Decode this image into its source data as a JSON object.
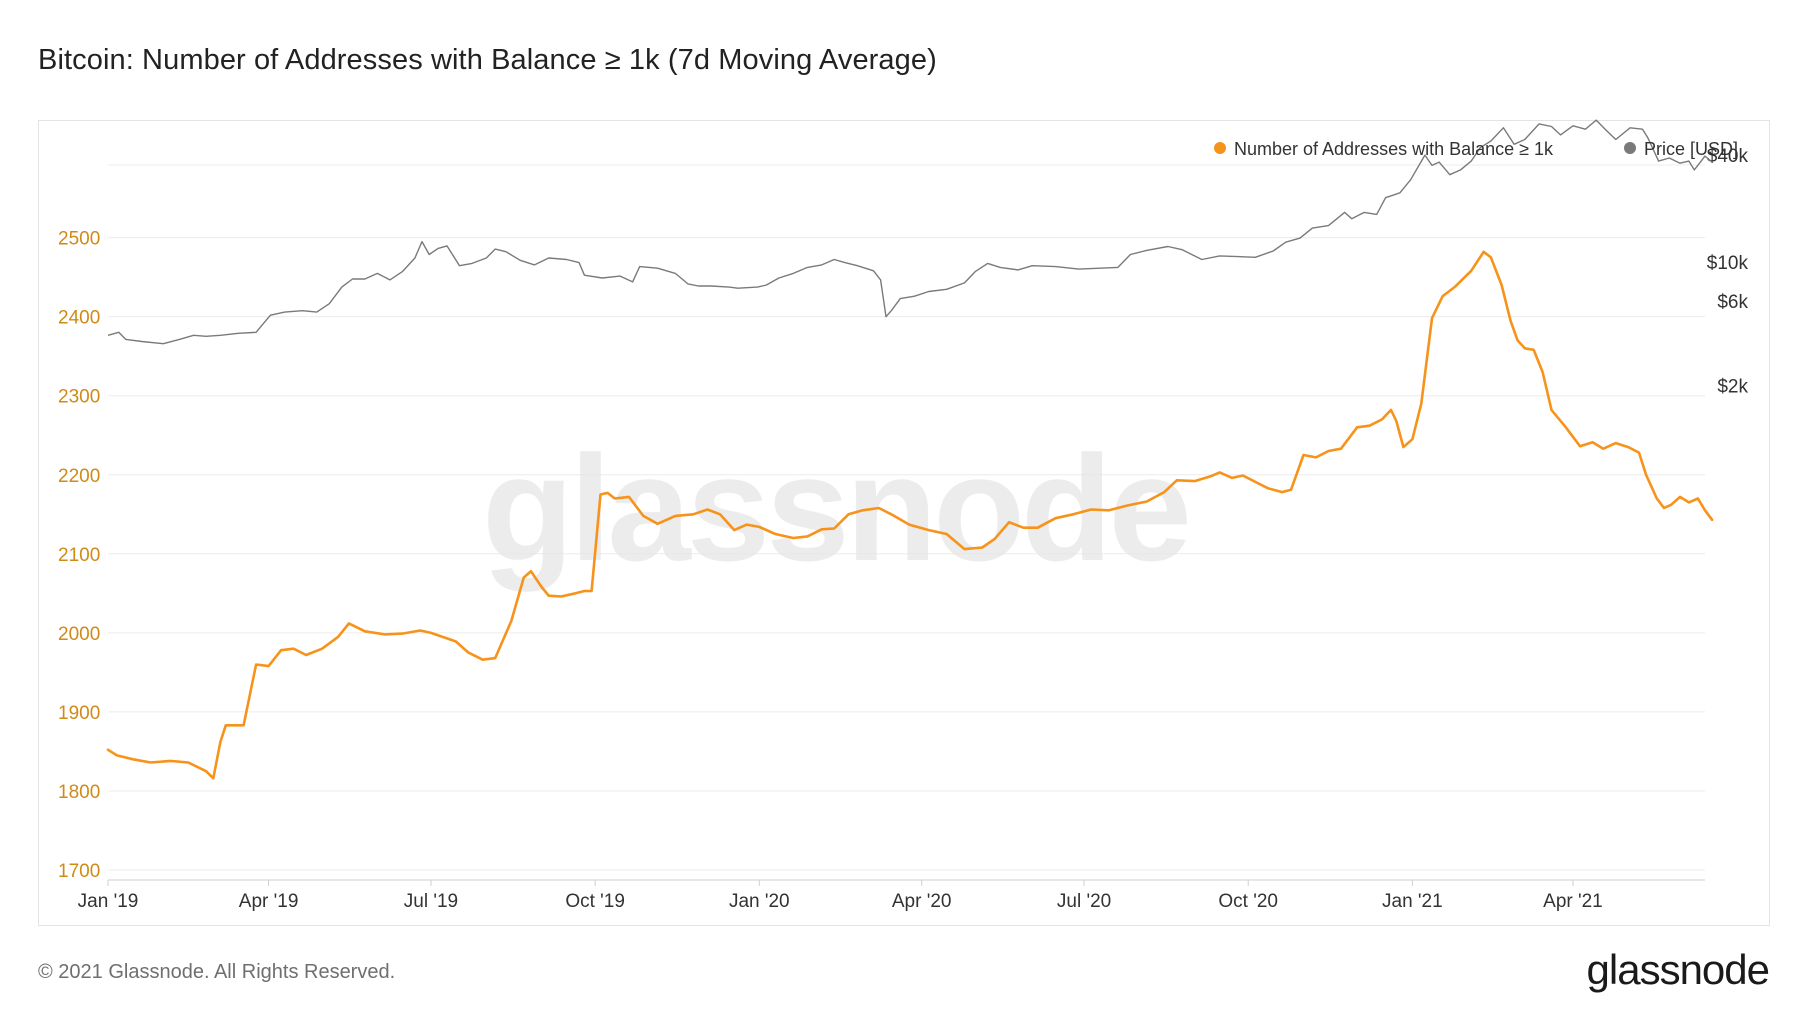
{
  "title": "Bitcoin: Number of Addresses with Balance ≥ 1k (7d Moving Average)",
  "footer": {
    "copyright": "© 2021 Glassnode. All Rights Reserved.",
    "logo": "glassnode"
  },
  "watermark": "glassnode",
  "colors": {
    "addresses": "#f7931a",
    "price": "#7a7a7a",
    "grid": "#ececec",
    "axis_left": "#d08a16",
    "axis_right": "#333333"
  },
  "chart_data": {
    "type": "line",
    "title": "Bitcoin: Number of Addresses with Balance ≥ 1k (7d Moving Average)",
    "legend_position": "top-right",
    "grid": true,
    "x_axis": {
      "ticks": [
        "Jan '19",
        "Apr '19",
        "Jul '19",
        "Oct '19",
        "Jan '20",
        "Apr '20",
        "Jul '20",
        "Oct '20",
        "Jan '21",
        "Apr '21"
      ],
      "range": [
        "2019-01-01",
        "2021-06-14"
      ]
    },
    "y_axis_left": {
      "ticks": [
        1700,
        1800,
        1900,
        2000,
        2100,
        2200,
        2300,
        2400,
        2500
      ],
      "range": [
        1700,
        2520
      ]
    },
    "y_axis_right": {
      "scale": "log",
      "tick_values": [
        2000,
        6000,
        10000,
        40000
      ],
      "tick_labels": [
        "$2k",
        "$6k",
        "$10k",
        "$40k"
      ]
    },
    "series": [
      {
        "name": "Number of Addresses with Balance ≥ 1k",
        "axis": "left",
        "points": [
          [
            "2019-01-01",
            1852
          ],
          [
            "2019-01-06",
            1845
          ],
          [
            "2019-01-15",
            1840
          ],
          [
            "2019-01-25",
            1836
          ],
          [
            "2019-02-05",
            1838
          ],
          [
            "2019-02-15",
            1836
          ],
          [
            "2019-02-25",
            1825
          ],
          [
            "2019-03-01",
            1816
          ],
          [
            "2019-03-05",
            1862
          ],
          [
            "2019-03-08",
            1883
          ],
          [
            "2019-03-18",
            1883
          ],
          [
            "2019-03-25",
            1960
          ],
          [
            "2019-04-01",
            1958
          ],
          [
            "2019-04-08",
            1978
          ],
          [
            "2019-04-15",
            1980
          ],
          [
            "2019-04-22",
            1972
          ],
          [
            "2019-05-01",
            1980
          ],
          [
            "2019-05-10",
            1995
          ],
          [
            "2019-05-16",
            2012
          ],
          [
            "2019-05-25",
            2002
          ],
          [
            "2019-06-05",
            1998
          ],
          [
            "2019-06-15",
            1999
          ],
          [
            "2019-06-25",
            2003
          ],
          [
            "2019-07-01",
            2000
          ],
          [
            "2019-07-10",
            1993
          ],
          [
            "2019-07-15",
            1989
          ],
          [
            "2019-07-22",
            1975
          ],
          [
            "2019-07-30",
            1966
          ],
          [
            "2019-08-06",
            1968
          ],
          [
            "2019-08-15",
            2015
          ],
          [
            "2019-08-22",
            2070
          ],
          [
            "2019-08-26",
            2078
          ],
          [
            "2019-09-01",
            2058
          ],
          [
            "2019-09-05",
            2047
          ],
          [
            "2019-09-12",
            2046
          ],
          [
            "2019-09-20",
            2050
          ],
          [
            "2019-09-25",
            2053
          ],
          [
            "2019-09-29",
            2053
          ],
          [
            "2019-10-04",
            2175
          ],
          [
            "2019-10-08",
            2177
          ],
          [
            "2019-10-12",
            2170
          ],
          [
            "2019-10-20",
            2172
          ],
          [
            "2019-10-28",
            2148
          ],
          [
            "2019-11-05",
            2138
          ],
          [
            "2019-11-15",
            2148
          ],
          [
            "2019-11-25",
            2150
          ],
          [
            "2019-12-03",
            2156
          ],
          [
            "2019-12-10",
            2150
          ],
          [
            "2019-12-18",
            2130
          ],
          [
            "2019-12-25",
            2137
          ],
          [
            "2020-01-01",
            2134
          ],
          [
            "2020-01-10",
            2125
          ],
          [
            "2020-01-20",
            2120
          ],
          [
            "2020-01-28",
            2122
          ],
          [
            "2020-02-05",
            2131
          ],
          [
            "2020-02-12",
            2132
          ],
          [
            "2020-02-20",
            2150
          ],
          [
            "2020-02-28",
            2155
          ],
          [
            "2020-03-08",
            2158
          ],
          [
            "2020-03-15",
            2150
          ],
          [
            "2020-03-25",
            2137
          ],
          [
            "2020-04-05",
            2130
          ],
          [
            "2020-04-15",
            2125
          ],
          [
            "2020-04-25",
            2106
          ],
          [
            "2020-05-05",
            2108
          ],
          [
            "2020-05-12",
            2119
          ],
          [
            "2020-05-20",
            2140
          ],
          [
            "2020-05-28",
            2133
          ],
          [
            "2020-06-05",
            2133
          ],
          [
            "2020-06-15",
            2145
          ],
          [
            "2020-06-25",
            2150
          ],
          [
            "2020-07-05",
            2156
          ],
          [
            "2020-07-15",
            2155
          ],
          [
            "2020-07-25",
            2161
          ],
          [
            "2020-08-05",
            2166
          ],
          [
            "2020-08-15",
            2178
          ],
          [
            "2020-08-22",
            2193
          ],
          [
            "2020-09-01",
            2192
          ],
          [
            "2020-09-10",
            2198
          ],
          [
            "2020-09-15",
            2203
          ],
          [
            "2020-09-22",
            2196
          ],
          [
            "2020-09-28",
            2199
          ],
          [
            "2020-10-05",
            2191
          ],
          [
            "2020-10-12",
            2183
          ],
          [
            "2020-10-20",
            2178
          ],
          [
            "2020-10-25",
            2181
          ],
          [
            "2020-11-01",
            2225
          ],
          [
            "2020-11-08",
            2222
          ],
          [
            "2020-11-15",
            2230
          ],
          [
            "2020-11-22",
            2233
          ],
          [
            "2020-12-01",
            2260
          ],
          [
            "2020-12-08",
            2262
          ],
          [
            "2020-12-15",
            2270
          ],
          [
            "2020-12-20",
            2282
          ],
          [
            "2020-12-23",
            2268
          ],
          [
            "2020-12-27",
            2235
          ],
          [
            "2021-01-01",
            2245
          ],
          [
            "2021-01-06",
            2290
          ],
          [
            "2021-01-12",
            2398
          ],
          [
            "2021-01-18",
            2426
          ],
          [
            "2021-01-25",
            2438
          ],
          [
            "2021-02-03",
            2458
          ],
          [
            "2021-02-10",
            2482
          ],
          [
            "2021-02-14",
            2475
          ],
          [
            "2021-02-20",
            2440
          ],
          [
            "2021-02-25",
            2395
          ],
          [
            "2021-03-01",
            2370
          ],
          [
            "2021-03-05",
            2360
          ],
          [
            "2021-03-10",
            2358
          ],
          [
            "2021-03-15",
            2330
          ],
          [
            "2021-03-20",
            2282
          ],
          [
            "2021-03-28",
            2260
          ],
          [
            "2021-04-05",
            2236
          ],
          [
            "2021-04-12",
            2241
          ],
          [
            "2021-04-18",
            2233
          ],
          [
            "2021-04-25",
            2240
          ],
          [
            "2021-05-02",
            2235
          ],
          [
            "2021-05-08",
            2228
          ],
          [
            "2021-05-12",
            2200
          ],
          [
            "2021-05-18",
            2170
          ],
          [
            "2021-05-22",
            2158
          ],
          [
            "2021-05-26",
            2162
          ],
          [
            "2021-05-31",
            2172
          ],
          [
            "2021-06-05",
            2165
          ],
          [
            "2021-06-10",
            2170
          ],
          [
            "2021-06-14",
            2155
          ],
          [
            "2021-06-18",
            2143
          ]
        ]
      },
      {
        "name": "Price [USD]",
        "axis": "right",
        "points": [
          [
            "2019-01-01",
            3850
          ],
          [
            "2019-01-07",
            4000
          ],
          [
            "2019-01-11",
            3650
          ],
          [
            "2019-01-20",
            3550
          ],
          [
            "2019-02-01",
            3450
          ],
          [
            "2019-02-10",
            3650
          ],
          [
            "2019-02-18",
            3850
          ],
          [
            "2019-02-25",
            3800
          ],
          [
            "2019-03-05",
            3850
          ],
          [
            "2019-03-15",
            3950
          ],
          [
            "2019-03-25",
            4000
          ],
          [
            "2019-04-02",
            5000
          ],
          [
            "2019-04-10",
            5200
          ],
          [
            "2019-04-20",
            5300
          ],
          [
            "2019-04-28",
            5200
          ],
          [
            "2019-05-05",
            5800
          ],
          [
            "2019-05-12",
            7200
          ],
          [
            "2019-05-18",
            8000
          ],
          [
            "2019-05-25",
            8000
          ],
          [
            "2019-06-01",
            8600
          ],
          [
            "2019-06-08",
            7900
          ],
          [
            "2019-06-15",
            8800
          ],
          [
            "2019-06-22",
            10500
          ],
          [
            "2019-06-26",
            13000
          ],
          [
            "2019-06-30",
            11000
          ],
          [
            "2019-07-05",
            11900
          ],
          [
            "2019-07-10",
            12300
          ],
          [
            "2019-07-17",
            9500
          ],
          [
            "2019-07-24",
            9800
          ],
          [
            "2019-08-01",
            10500
          ],
          [
            "2019-08-06",
            11800
          ],
          [
            "2019-08-12",
            11400
          ],
          [
            "2019-08-20",
            10200
          ],
          [
            "2019-08-28",
            9600
          ],
          [
            "2019-09-05",
            10500
          ],
          [
            "2019-09-15",
            10300
          ],
          [
            "2019-09-22",
            9900
          ],
          [
            "2019-09-25",
            8400
          ],
          [
            "2019-10-05",
            8100
          ],
          [
            "2019-10-15",
            8300
          ],
          [
            "2019-10-22",
            7700
          ],
          [
            "2019-10-26",
            9400
          ],
          [
            "2019-11-05",
            9200
          ],
          [
            "2019-11-15",
            8600
          ],
          [
            "2019-11-22",
            7500
          ],
          [
            "2019-11-28",
            7300
          ],
          [
            "2019-12-05",
            7300
          ],
          [
            "2019-12-15",
            7200
          ],
          [
            "2019-12-20",
            7100
          ],
          [
            "2019-12-31",
            7200
          ],
          [
            "2020-01-05",
            7400
          ],
          [
            "2020-01-12",
            8100
          ],
          [
            "2020-01-20",
            8600
          ],
          [
            "2020-01-28",
            9300
          ],
          [
            "2020-02-05",
            9600
          ],
          [
            "2020-02-12",
            10300
          ],
          [
            "2020-02-18",
            9900
          ],
          [
            "2020-02-25",
            9500
          ],
          [
            "2020-03-05",
            8900
          ],
          [
            "2020-03-09",
            7900
          ],
          [
            "2020-03-12",
            4900
          ],
          [
            "2020-03-15",
            5300
          ],
          [
            "2020-03-20",
            6200
          ],
          [
            "2020-03-28",
            6400
          ],
          [
            "2020-04-05",
            6800
          ],
          [
            "2020-04-15",
            7000
          ],
          [
            "2020-04-25",
            7600
          ],
          [
            "2020-05-01",
            8800
          ],
          [
            "2020-05-08",
            9800
          ],
          [
            "2020-05-15",
            9300
          ],
          [
            "2020-05-25",
            9000
          ],
          [
            "2020-06-02",
            9500
          ],
          [
            "2020-06-15",
            9400
          ],
          [
            "2020-06-28",
            9100
          ],
          [
            "2020-07-10",
            9200
          ],
          [
            "2020-07-20",
            9300
          ],
          [
            "2020-07-27",
            11000
          ],
          [
            "2020-08-05",
            11600
          ],
          [
            "2020-08-17",
            12200
          ],
          [
            "2020-08-25",
            11700
          ],
          [
            "2020-09-05",
            10300
          ],
          [
            "2020-09-15",
            10800
          ],
          [
            "2020-09-25",
            10700
          ],
          [
            "2020-10-05",
            10600
          ],
          [
            "2020-10-15",
            11500
          ],
          [
            "2020-10-22",
            12900
          ],
          [
            "2020-10-30",
            13600
          ],
          [
            "2020-11-06",
            15500
          ],
          [
            "2020-11-15",
            16000
          ],
          [
            "2020-11-24",
            19000
          ],
          [
            "2020-11-28",
            17500
          ],
          [
            "2020-12-05",
            19000
          ],
          [
            "2020-12-12",
            18500
          ],
          [
            "2020-12-17",
            23000
          ],
          [
            "2020-12-25",
            24500
          ],
          [
            "2020-12-31",
            29000
          ],
          [
            "2021-01-08",
            40000
          ],
          [
            "2021-01-12",
            35000
          ],
          [
            "2021-01-16",
            36500
          ],
          [
            "2021-01-22",
            31000
          ],
          [
            "2021-01-28",
            33000
          ],
          [
            "2021-02-03",
            37000
          ],
          [
            "2021-02-08",
            44000
          ],
          [
            "2021-02-14",
            48000
          ],
          [
            "2021-02-21",
            57000
          ],
          [
            "2021-02-27",
            46000
          ],
          [
            "2021-03-05",
            49000
          ],
          [
            "2021-03-13",
            60000
          ],
          [
            "2021-03-20",
            58000
          ],
          [
            "2021-03-25",
            52000
          ],
          [
            "2021-04-01",
            58500
          ],
          [
            "2021-04-08",
            56000
          ],
          [
            "2021-04-14",
            63000
          ],
          [
            "2021-04-19",
            56000
          ],
          [
            "2021-04-25",
            49000
          ],
          [
            "2021-05-03",
            57000
          ],
          [
            "2021-05-10",
            56000
          ],
          [
            "2021-05-13",
            50000
          ],
          [
            "2021-05-19",
            37000
          ],
          [
            "2021-05-25",
            38500
          ],
          [
            "2021-05-31",
            36000
          ],
          [
            "2021-06-05",
            37000
          ],
          [
            "2021-06-08",
            33000
          ],
          [
            "2021-06-14",
            39500
          ],
          [
            "2021-06-18",
            36500
          ]
        ]
      }
    ]
  }
}
